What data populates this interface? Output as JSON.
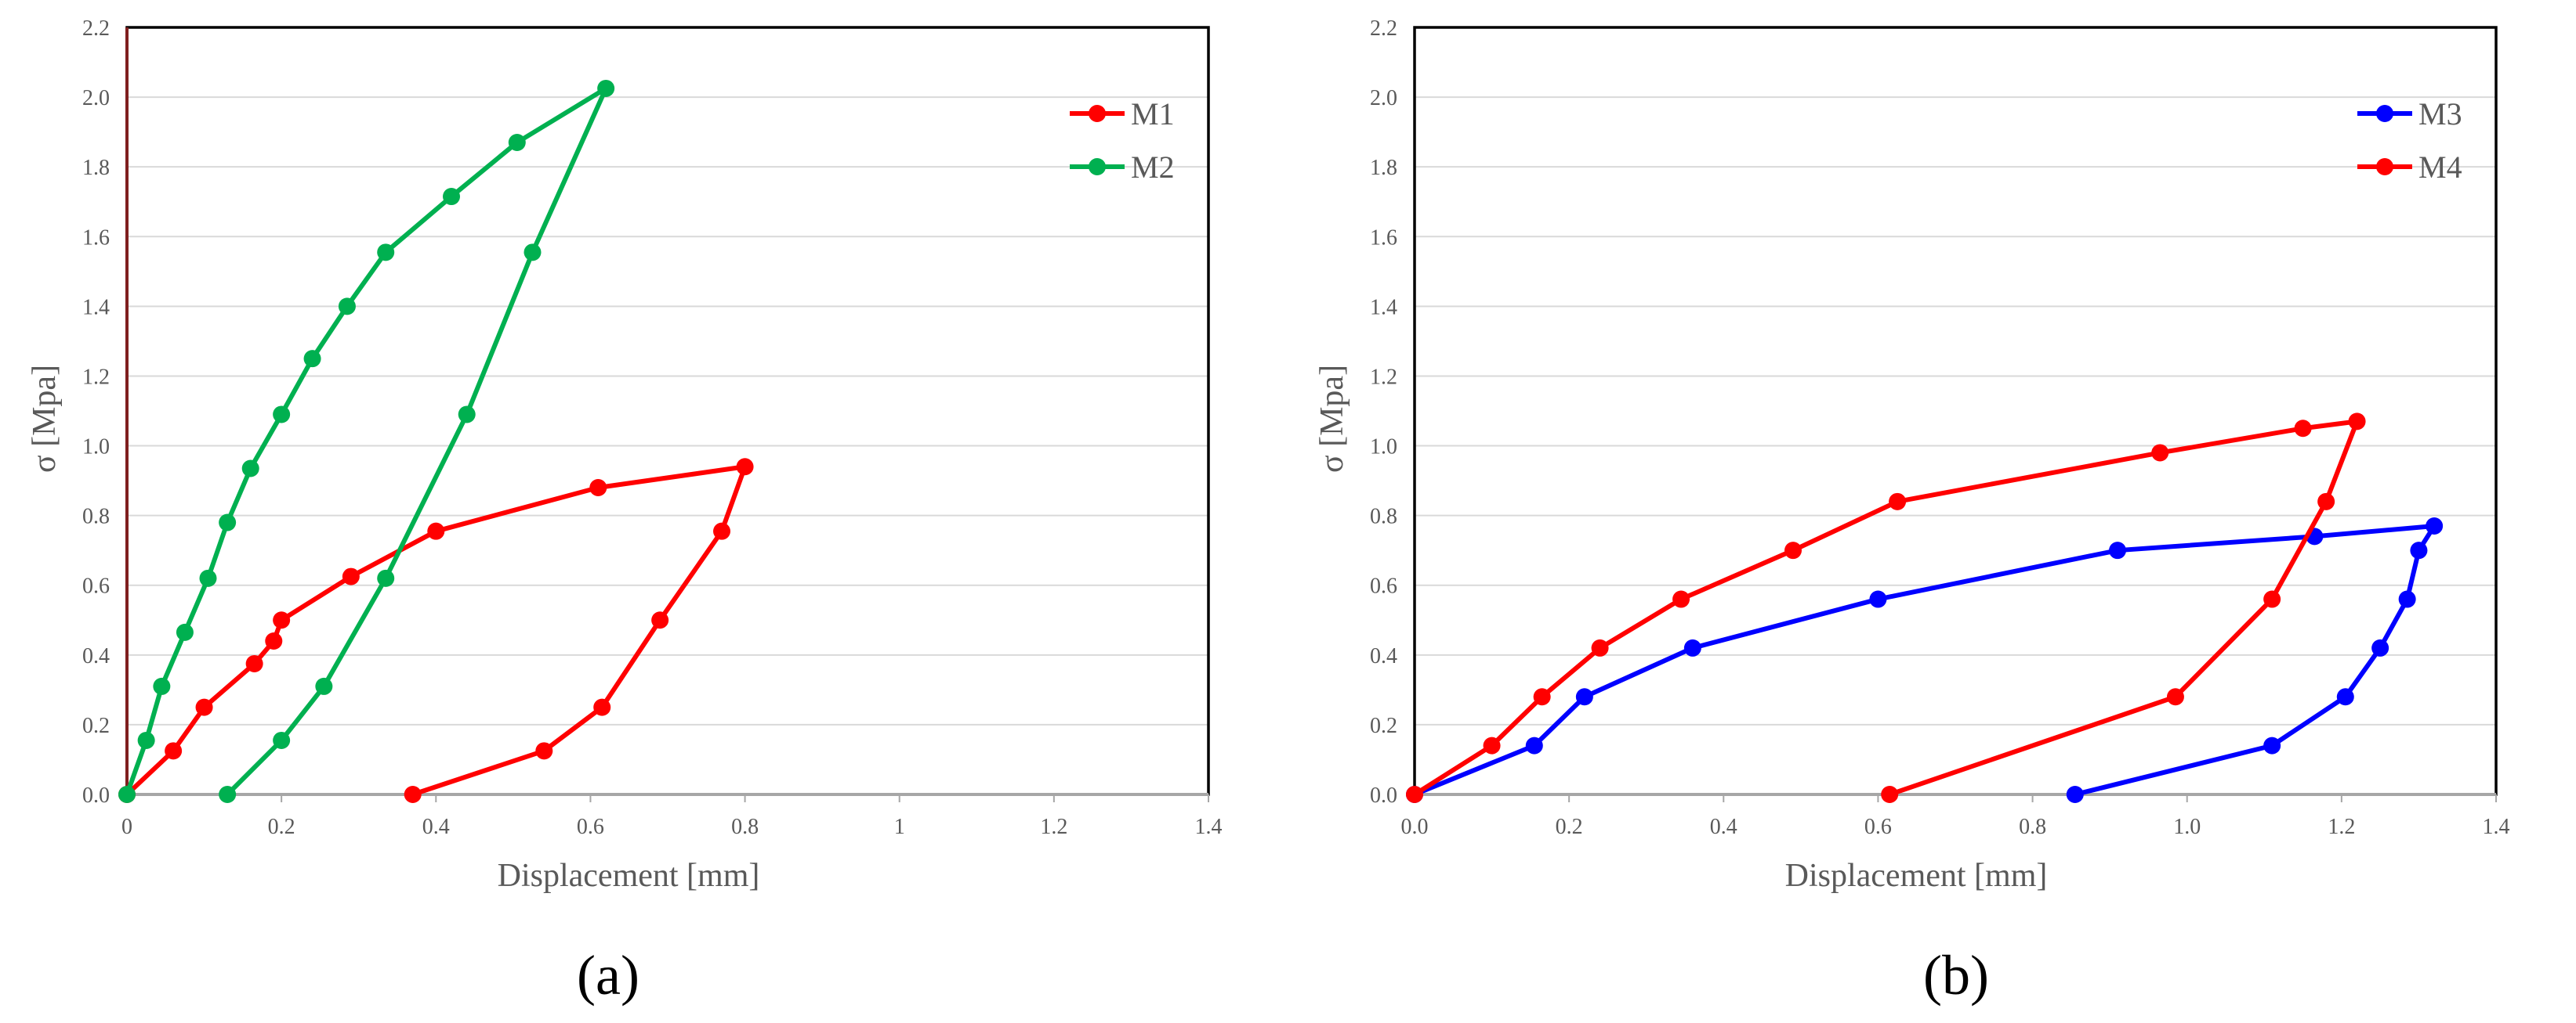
{
  "figure": {
    "captions": [
      "(a)",
      "(b)"
    ]
  },
  "chart_data": [
    {
      "type": "scatter",
      "panel": "(a)",
      "xlabel": "Displacement [mm]",
      "ylabel": "σ [Mpa]",
      "xlim": [
        0,
        1.4
      ],
      "ylim": [
        0,
        2.2
      ],
      "xticks": [
        0,
        0.2,
        0.4,
        0.6,
        0.8,
        1,
        1.2,
        1.4
      ],
      "xtick_labels": [
        "0",
        "0.2",
        "0.4",
        "0.6",
        "0.8",
        "1",
        "1.2",
        "1.4"
      ],
      "yticks": [
        0,
        0.2,
        0.4,
        0.6,
        0.8,
        1.0,
        1.2,
        1.4,
        1.6,
        1.8,
        2.0,
        2.2
      ],
      "ytick_labels": [
        "0.0",
        "0.2",
        "0.4",
        "0.6",
        "0.8",
        "1.0",
        "1.2",
        "1.4",
        "1.6",
        "1.8",
        "2.0",
        "2.2"
      ],
      "grid": "horizontal",
      "legend": "top-right",
      "lines_with_markers": true,
      "series": [
        {
          "name": "M1",
          "color": "#ff0000",
          "points": [
            [
              0,
              0
            ],
            [
              0.06,
              0.125
            ],
            [
              0.1,
              0.25
            ],
            [
              0.165,
              0.375
            ],
            [
              0.19,
              0.44
            ],
            [
              0.2,
              0.5
            ],
            [
              0.29,
              0.625
            ],
            [
              0.4,
              0.755
            ],
            [
              0.61,
              0.88
            ],
            [
              0.8,
              0.94
            ],
            [
              0.77,
              0.755
            ],
            [
              0.69,
              0.5
            ],
            [
              0.615,
              0.25
            ],
            [
              0.54,
              0.125
            ],
            [
              0.37,
              0
            ]
          ]
        },
        {
          "name": "M2",
          "color": "#00b050",
          "points": [
            [
              0,
              0
            ],
            [
              0.025,
              0.155
            ],
            [
              0.045,
              0.31
            ],
            [
              0.075,
              0.465
            ],
            [
              0.105,
              0.62
            ],
            [
              0.13,
              0.78
            ],
            [
              0.16,
              0.935
            ],
            [
              0.2,
              1.09
            ],
            [
              0.24,
              1.25
            ],
            [
              0.285,
              1.4
            ],
            [
              0.335,
              1.555
            ],
            [
              0.42,
              1.715
            ],
            [
              0.505,
              1.87
            ],
            [
              0.62,
              2.025
            ],
            [
              0.525,
              1.555
            ],
            [
              0.44,
              1.09
            ],
            [
              0.335,
              0.62
            ],
            [
              0.255,
              0.31
            ],
            [
              0.2,
              0.155
            ],
            [
              0.13,
              0
            ]
          ]
        }
      ]
    },
    {
      "type": "scatter",
      "panel": "(b)",
      "xlabel": "Displacement [mm]",
      "ylabel": "σ [Mpa]",
      "xlim": [
        0,
        1.4
      ],
      "ylim": [
        0,
        2.2
      ],
      "xticks": [
        0,
        0.2,
        0.4,
        0.6,
        0.8,
        1.0,
        1.2,
        1.4
      ],
      "xtick_labels": [
        "0.0",
        "0.2",
        "0.4",
        "0.6",
        "0.8",
        "1.0",
        "1.2",
        "1.4"
      ],
      "yticks": [
        0,
        0.2,
        0.4,
        0.6,
        0.8,
        1.0,
        1.2,
        1.4,
        1.6,
        1.8,
        2.0,
        2.2
      ],
      "ytick_labels": [
        "0.0",
        "0.2",
        "0.4",
        "0.6",
        "0.8",
        "1.0",
        "1.2",
        "1.4",
        "1.6",
        "1.8",
        "2.0",
        "2.2"
      ],
      "grid": "horizontal",
      "legend": "top-right",
      "lines_with_markers": true,
      "series": [
        {
          "name": "M3",
          "color": "#0000ff",
          "points": [
            [
              0,
              0
            ],
            [
              0.155,
              0.14
            ],
            [
              0.22,
              0.28
            ],
            [
              0.36,
              0.42
            ],
            [
              0.6,
              0.56
            ],
            [
              0.91,
              0.7
            ],
            [
              1.165,
              0.74
            ],
            [
              1.32,
              0.77
            ],
            [
              1.3,
              0.7
            ],
            [
              1.285,
              0.56
            ],
            [
              1.25,
              0.42
            ],
            [
              1.205,
              0.28
            ],
            [
              1.11,
              0.14
            ],
            [
              0.855,
              0
            ]
          ]
        },
        {
          "name": "M4",
          "color": "#ff0000",
          "points": [
            [
              0,
              0
            ],
            [
              0.1,
              0.14
            ],
            [
              0.165,
              0.28
            ],
            [
              0.24,
              0.42
            ],
            [
              0.345,
              0.56
            ],
            [
              0.49,
              0.7
            ],
            [
              0.625,
              0.84
            ],
            [
              0.965,
              0.98
            ],
            [
              1.15,
              1.05
            ],
            [
              1.22,
              1.07
            ],
            [
              1.18,
              0.84
            ],
            [
              1.11,
              0.56
            ],
            [
              0.985,
              0.28
            ],
            [
              0.615,
              0
            ]
          ]
        }
      ]
    }
  ]
}
